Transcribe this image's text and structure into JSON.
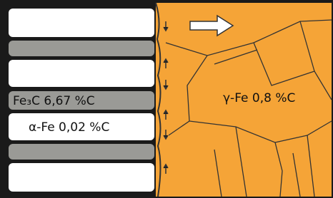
{
  "labels": {
    "cementite": "Fe₃C 6,67 %C",
    "ferrite": "α-Fe 0,02 %C",
    "austenite": "γ-Fe 0,8 %C"
  }
}
